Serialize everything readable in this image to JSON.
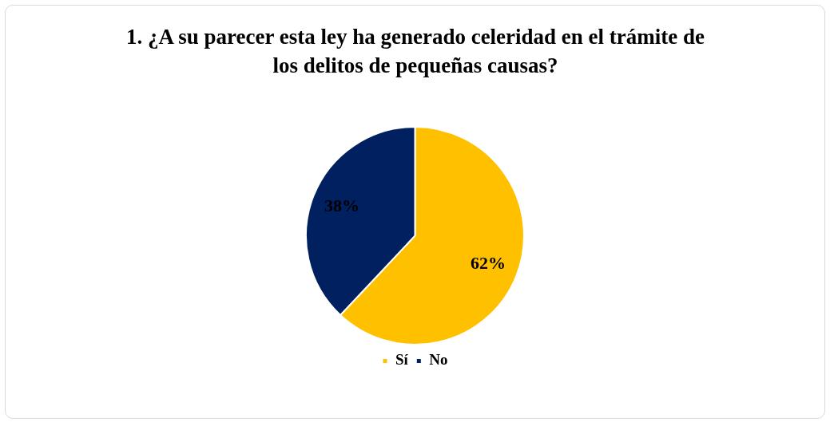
{
  "chart_data": {
    "type": "pie",
    "title": "1. ¿A su parecer esta ley ha generado celeridad en el trámite de los delitos de pequeñas causas?",
    "categories": [
      "Sí",
      "No"
    ],
    "values": [
      62,
      38
    ],
    "colors": [
      "#ffc000",
      "#002060"
    ],
    "value_labels": [
      "62%",
      "38%"
    ],
    "legend": "bottom"
  }
}
